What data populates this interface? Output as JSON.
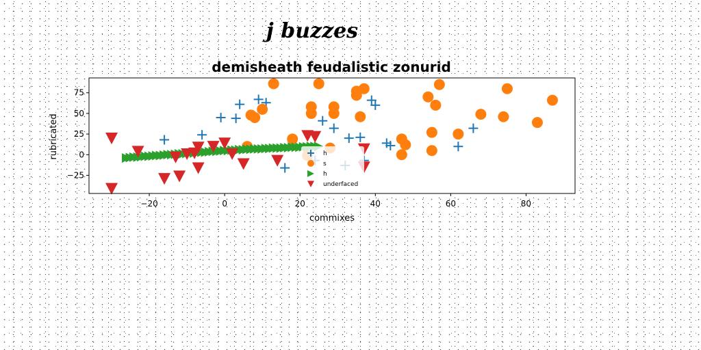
{
  "figure": {
    "supertitle": "j buzzes"
  },
  "chart_data": {
    "type": "scatter",
    "title": "demisheath feudalistic zonurid",
    "xlabel": "commixes",
    "ylabel": "rubricated",
    "xlim": [
      -36,
      93
    ],
    "ylim": [
      -47,
      93
    ],
    "xticks": [
      -20,
      0,
      20,
      40,
      60,
      80
    ],
    "yticks": [
      -25,
      0,
      25,
      50,
      75
    ],
    "xtick_labels": [
      "−20",
      "0",
      "20",
      "40",
      "60",
      "80"
    ],
    "ytick_labels": [
      "−25",
      "0",
      "25",
      "50",
      "75"
    ],
    "grid": false,
    "legend": {
      "position": "lower-center",
      "entries": [
        "h",
        "s",
        "h",
        "underfaced"
      ]
    },
    "series": [
      {
        "name": "h",
        "marker": "plus",
        "color": "#1f77b4",
        "points": [
          [
            -16,
            18
          ],
          [
            -6,
            24
          ],
          [
            -1,
            45
          ],
          [
            3,
            44
          ],
          [
            4,
            61
          ],
          [
            9,
            67
          ],
          [
            11,
            63
          ],
          [
            16,
            -16
          ],
          [
            24,
            -7
          ],
          [
            26,
            41
          ],
          [
            29,
            32
          ],
          [
            32,
            -13
          ],
          [
            33,
            20
          ],
          [
            36,
            21
          ],
          [
            37,
            -7
          ],
          [
            39,
            66
          ],
          [
            40,
            60
          ],
          [
            43,
            14
          ],
          [
            44,
            11
          ],
          [
            62,
            10
          ],
          [
            66,
            32
          ]
        ]
      },
      {
        "name": "s",
        "marker": "circle",
        "color": "#ff7f0e",
        "points": [
          [
            6,
            10
          ],
          [
            7,
            48
          ],
          [
            8,
            45
          ],
          [
            10,
            55
          ],
          [
            13,
            86
          ],
          [
            18,
            19
          ],
          [
            22,
            -1
          ],
          [
            23,
            58
          ],
          [
            23,
            50
          ],
          [
            25,
            86
          ],
          [
            28,
            8
          ],
          [
            29,
            50
          ],
          [
            29,
            58
          ],
          [
            35,
            77
          ],
          [
            35,
            72
          ],
          [
            36,
            46
          ],
          [
            37,
            80
          ],
          [
            47,
            19
          ],
          [
            47,
            0
          ],
          [
            48,
            12
          ],
          [
            54,
            70
          ],
          [
            55,
            5
          ],
          [
            55,
            27
          ],
          [
            56,
            60
          ],
          [
            57,
            85
          ],
          [
            62,
            25
          ],
          [
            68,
            49
          ],
          [
            74,
            46
          ],
          [
            75,
            80
          ],
          [
            83,
            39
          ],
          [
            87,
            66
          ]
        ]
      },
      {
        "name": "h",
        "marker": "triangle-right",
        "color": "#2ca02c",
        "points": [
          [
            -26,
            -4
          ],
          [
            -25,
            -3.5
          ],
          [
            -24,
            -3
          ],
          [
            -23,
            -3
          ],
          [
            -22,
            -2.5
          ],
          [
            -21,
            -2
          ],
          [
            -20,
            -2
          ],
          [
            -19,
            -1.5
          ],
          [
            -18,
            -1
          ],
          [
            -17,
            -1
          ],
          [
            -16,
            -0.5
          ],
          [
            -15,
            0
          ],
          [
            -14,
            0
          ],
          [
            -13,
            0.5
          ],
          [
            -12,
            1
          ],
          [
            -11,
            1
          ],
          [
            -10,
            1.5
          ],
          [
            -9,
            2
          ],
          [
            -8,
            2
          ],
          [
            -7,
            2.5
          ],
          [
            -6,
            3
          ],
          [
            -5,
            3
          ],
          [
            -4,
            3.5
          ],
          [
            -3,
            4
          ],
          [
            -2,
            4
          ],
          [
            -1,
            4.5
          ],
          [
            0,
            5
          ],
          [
            1,
            5
          ],
          [
            2,
            5.5
          ],
          [
            3,
            5.5
          ],
          [
            4,
            6
          ],
          [
            5,
            6
          ],
          [
            6,
            6.5
          ],
          [
            7,
            6.5
          ],
          [
            8,
            7
          ],
          [
            9,
            7
          ],
          [
            10,
            7
          ],
          [
            11,
            7.5
          ],
          [
            12,
            7.5
          ],
          [
            13,
            8
          ],
          [
            14,
            8
          ],
          [
            15,
            8
          ],
          [
            16,
            8.5
          ],
          [
            17,
            8.5
          ],
          [
            18,
            9
          ],
          [
            19,
            9
          ],
          [
            20,
            9
          ],
          [
            21,
            9.5
          ],
          [
            22,
            9.5
          ],
          [
            23,
            10
          ],
          [
            24,
            10
          ],
          [
            25,
            10
          ]
        ]
      },
      {
        "name": "underfaced",
        "marker": "triangle-down",
        "color": "#d62728",
        "points": [
          [
            -30,
            20
          ],
          [
            -30,
            -41
          ],
          [
            -23,
            4
          ],
          [
            -16,
            -29
          ],
          [
            -13,
            -3
          ],
          [
            -12,
            -26
          ],
          [
            -10,
            1
          ],
          [
            -8,
            2
          ],
          [
            -7,
            -16
          ],
          [
            -7,
            9
          ],
          [
            -3,
            10
          ],
          [
            0,
            14
          ],
          [
            2,
            1
          ],
          [
            5,
            -11
          ],
          [
            14,
            -7
          ],
          [
            22,
            23
          ],
          [
            24,
            22
          ],
          [
            37,
            7
          ],
          [
            37,
            -15
          ]
        ]
      }
    ]
  }
}
